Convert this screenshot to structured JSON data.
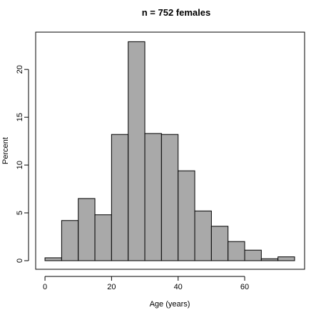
{
  "chart_data": {
    "type": "bar",
    "title": "n = 752 females",
    "xlabel": "Age (years)",
    "ylabel": "Percent",
    "bin_edges": [
      0,
      5,
      10,
      15,
      20,
      25,
      30,
      35,
      40,
      45,
      50,
      55,
      60,
      65,
      70,
      75
    ],
    "values": [
      0.3,
      4.2,
      6.5,
      4.8,
      13.2,
      22.9,
      13.3,
      13.2,
      9.4,
      5.2,
      3.6,
      2.0,
      1.1,
      0.2,
      0.4
    ],
    "xlim": [
      -2.8,
      78.0
    ],
    "ylim": [
      -0.9,
      23.9
    ],
    "x_ticks": [
      0,
      20,
      40,
      60
    ],
    "y_ticks": [
      0,
      5,
      10,
      15,
      20
    ],
    "bar_color": "#a9a9a9",
    "grid": false,
    "legend": "none"
  }
}
